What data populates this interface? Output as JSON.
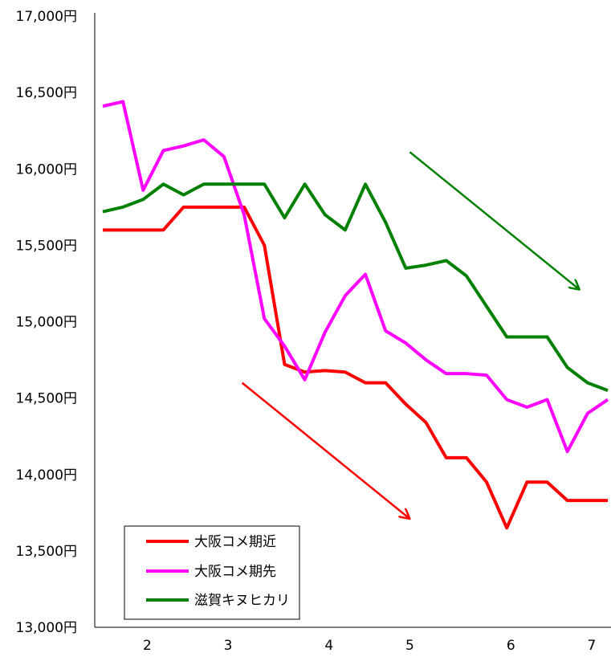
{
  "chart_data": {
    "type": "line",
    "title": "",
    "xlabel": "",
    "ylabel": "",
    "ylim": [
      13000,
      17000
    ],
    "y_ticks": [
      "13,000円",
      "13,500円",
      "14,000円",
      "14,500円",
      "15,000円",
      "15,500円",
      "16,000円",
      "16,500円",
      "17,000円"
    ],
    "y_tick_values": [
      13000,
      13500,
      14000,
      14500,
      15000,
      15500,
      16000,
      16500,
      17000
    ],
    "x_ticks": [
      "2",
      "3",
      "4",
      "5",
      "6",
      "7"
    ],
    "x_tick_positions": [
      2.2,
      6.2,
      11.2,
      15.2,
      20.2,
      24.2
    ],
    "x_range": [
      0,
      25
    ],
    "grid": false,
    "legend_position": "bottom-left",
    "series": [
      {
        "name": "大阪コメ期近",
        "color": "#ff0000",
        "values": [
          15600,
          15600,
          15600,
          15600,
          15750,
          15750,
          15750,
          15750,
          15500,
          14720,
          14670,
          14680,
          14670,
          14600,
          14600,
          14460,
          14340,
          14110,
          14110,
          13950,
          13650,
          13950,
          13950,
          13830,
          13830,
          13830
        ]
      },
      {
        "name": "大阪コメ期先",
        "color": "#ff00ff",
        "values": [
          16410,
          16440,
          15860,
          16120,
          16150,
          16190,
          16080,
          15700,
          15020,
          14840,
          14620,
          14930,
          15170,
          15310,
          14940,
          14860,
          14750,
          14660,
          14660,
          14650,
          14490,
          14440,
          14490,
          14150,
          14400,
          14490
        ]
      },
      {
        "name": "滋賀キヌヒカリ",
        "color": "#008000",
        "values": [
          15720,
          15750,
          15800,
          15900,
          15830,
          15900,
          15900,
          15900,
          15900,
          15680,
          15900,
          15700,
          15600,
          15900,
          15650,
          15350,
          15370,
          15400,
          15300,
          15100,
          14900,
          14900,
          14900,
          14700,
          14600,
          14550
        ]
      }
    ],
    "annotations": [
      {
        "type": "arrow",
        "color": "#ff0000",
        "from": [
          6.9,
          14600
        ],
        "to": [
          15.2,
          13710
        ]
      },
      {
        "type": "arrow",
        "color": "#008000",
        "from": [
          15.2,
          16110
        ],
        "to": [
          23.6,
          15210
        ]
      }
    ]
  }
}
